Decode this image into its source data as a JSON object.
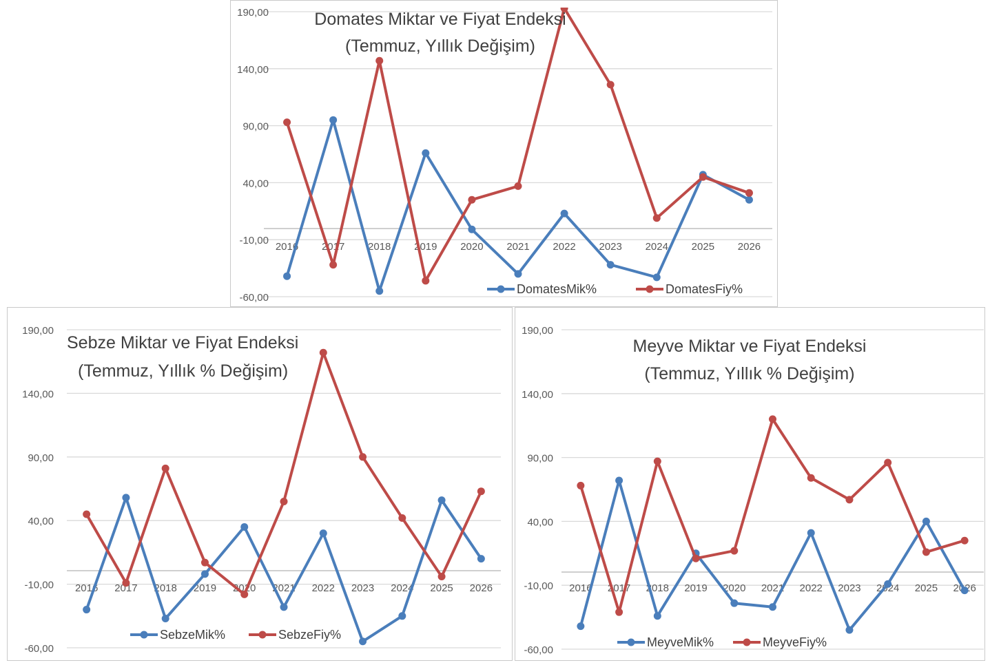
{
  "chart_data": [
    {
      "type": "line",
      "title": "Domates Miktar ve Fiyat Endeksi",
      "subtitle": "(Temmuz, Yıllık Değişim)",
      "categories": [
        "2016",
        "2017",
        "2018",
        "2019",
        "2020",
        "2021",
        "2022",
        "2023",
        "2024",
        "2025",
        "2026"
      ],
      "y_ticks": [
        "190,00",
        "140,00",
        "90,00",
        "40,00",
        "-10,00",
        "-60,00"
      ],
      "ylim": [
        -60,
        190
      ],
      "series": [
        {
          "name": "DomatesMik%",
          "color": "#4a7ebb",
          "values": [
            -42,
            95,
            -55,
            66,
            -1,
            -40,
            13,
            -32,
            -43,
            47,
            25
          ]
        },
        {
          "name": "DomatesFiy%",
          "color": "#be4b48",
          "values": [
            93,
            -32,
            147,
            -46,
            25,
            37,
            193,
            126,
            9,
            45,
            31
          ]
        }
      ],
      "legend": "bottom",
      "grid": true
    },
    {
      "type": "line",
      "title": "Sebze Miktar ve Fiyat Endeksi",
      "subtitle": "(Temmuz, Yıllık % Değişim)",
      "categories": [
        "2016",
        "2017",
        "2018",
        "2019",
        "2020",
        "2021",
        "2022",
        "2023",
        "2024",
        "2025",
        "2026"
      ],
      "y_ticks": [
        "190,00",
        "140,00",
        "90,00",
        "40,00",
        "-10,00",
        "-60,00"
      ],
      "ylim": [
        -60,
        190
      ],
      "series": [
        {
          "name": "SebzeMik%",
          "color": "#4a7ebb",
          "values": [
            -30,
            58,
            -37,
            -2,
            35,
            -28,
            30,
            -55,
            -35,
            56,
            10
          ]
        },
        {
          "name": "SebzeFiy%",
          "color": "#be4b48",
          "values": [
            45,
            -9,
            81,
            7,
            -18,
            55,
            172,
            90,
            42,
            -4,
            63
          ]
        }
      ],
      "legend": "bottom",
      "grid": true
    },
    {
      "type": "line",
      "title": "Meyve Miktar ve Fiyat Endeksi",
      "subtitle": "(Temmuz, Yıllık % Değişim)",
      "categories": [
        "2016",
        "2017",
        "2018",
        "2019",
        "2020",
        "2021",
        "2022",
        "2023",
        "2024",
        "2025",
        "2026"
      ],
      "y_ticks": [
        "190,00",
        "140,00",
        "90,00",
        "40,00",
        "-10,00",
        "-60,00"
      ],
      "ylim": [
        -60,
        190
      ],
      "series": [
        {
          "name": "MeyveMik%",
          "color": "#4a7ebb",
          "values": [
            -42,
            72,
            -34,
            15,
            -24,
            -27,
            31,
            -45,
            -9,
            40,
            -14
          ]
        },
        {
          "name": "MeyveFiy%",
          "color": "#be4b48",
          "values": [
            68,
            -31,
            87,
            11,
            17,
            120,
            74,
            57,
            86,
            16,
            25
          ]
        }
      ],
      "legend": "bottom",
      "grid": true
    }
  ]
}
